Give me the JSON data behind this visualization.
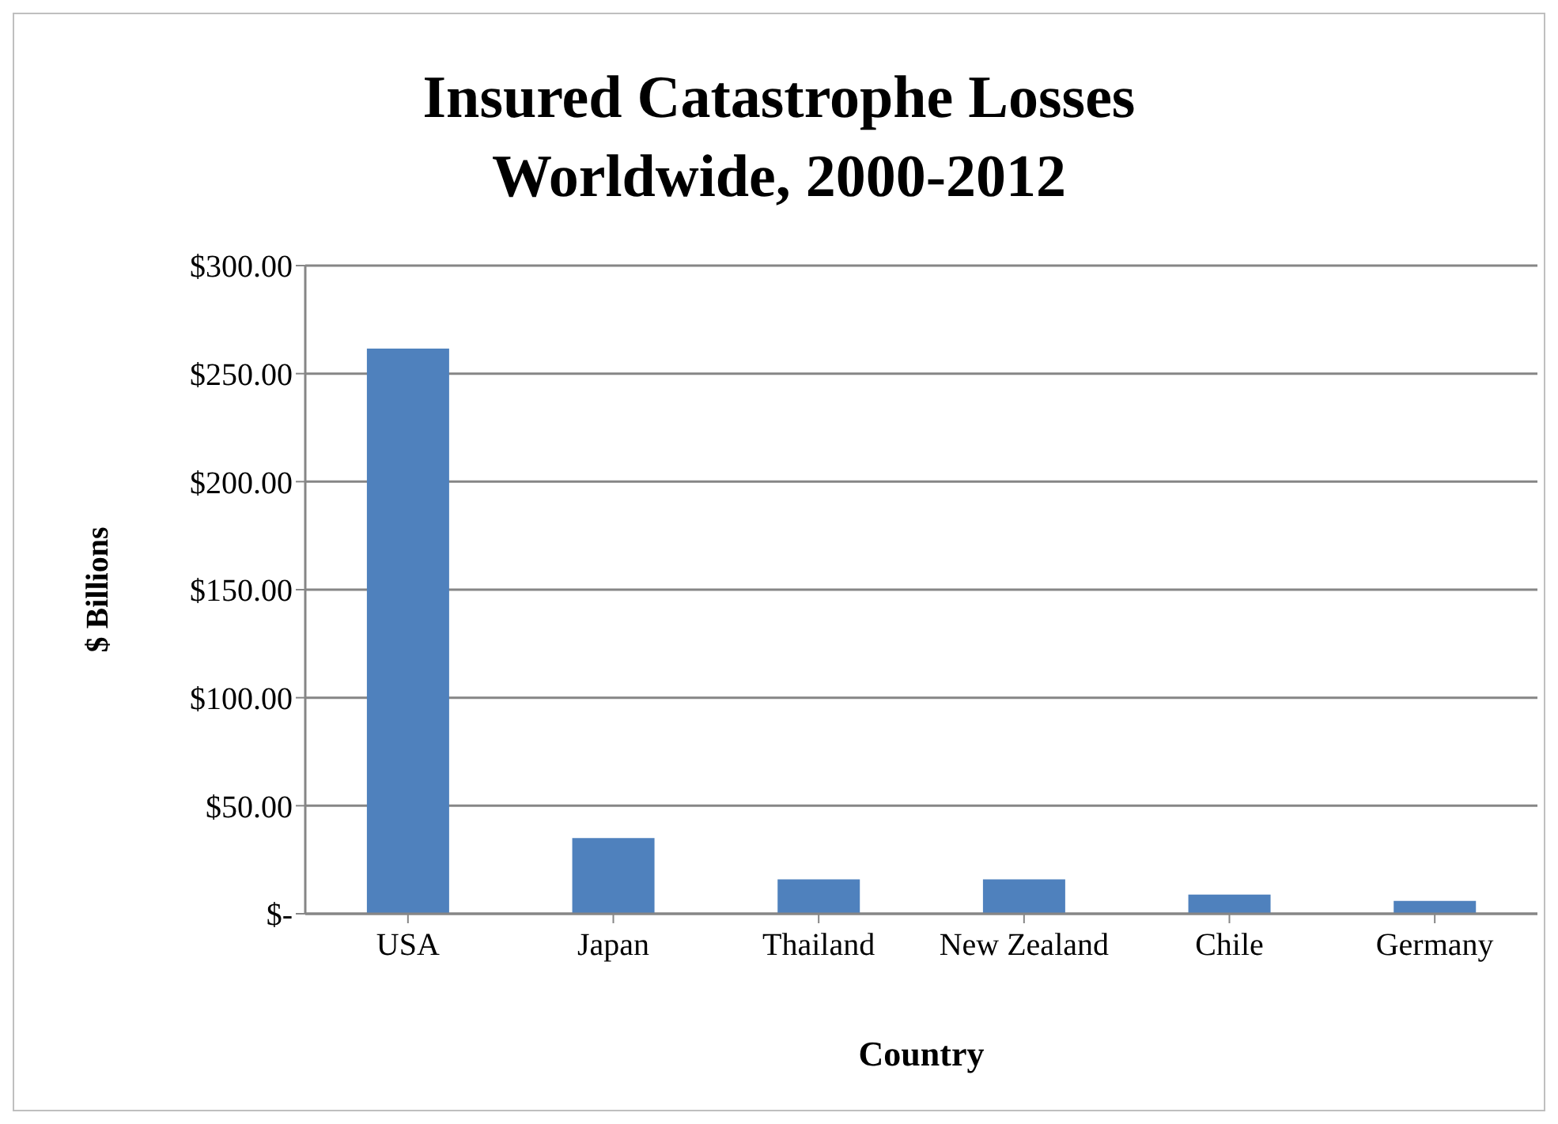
{
  "chart_data": {
    "type": "bar",
    "title": "Insured Catastrophe Losses Worldwide, 2000-2012",
    "xlabel": "Country",
    "ylabel": "$ Billions",
    "categories": [
      "USA",
      "Japan",
      "Thailand",
      "New Zealand",
      "Chile",
      "Germany"
    ],
    "values": [
      261.6,
      35,
      15.9,
      15.9,
      8.9,
      5.9
    ],
    "color": "#4f81bd",
    "ylim": [
      0,
      300
    ],
    "yticks": [
      {
        "value": 0,
        "label": "$-"
      },
      {
        "value": 50,
        "label": "$50.00"
      },
      {
        "value": 100,
        "label": "$100.00"
      },
      {
        "value": 150,
        "label": "$150.00"
      },
      {
        "value": 200,
        "label": "$200.00"
      },
      {
        "value": 250,
        "label": "$250.00"
      },
      {
        "value": 300,
        "label": "$300.00"
      }
    ],
    "grid": "y",
    "legend": false
  }
}
